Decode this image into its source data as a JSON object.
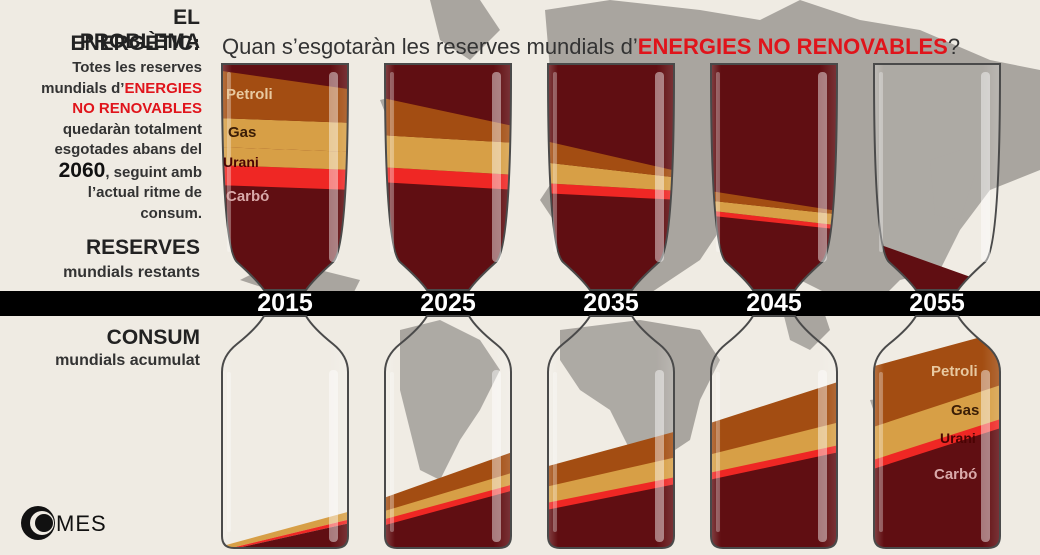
{
  "colors": {
    "petroli": "#9e4405",
    "gas": "#d59a3c",
    "urani": "#ee1c18",
    "carbo": "#580105",
    "background": "#efebe3",
    "map": "#a9a59f",
    "band": "#000000",
    "accent_red": "#e0141b"
  },
  "header": {
    "title_line1": "EL PROBLEMA",
    "title_line2": "ENERGÈTIC:",
    "question_prefix": "Quan s’esgotaràn les reserves mundials d’",
    "question_highlight": "ENERGIES NO RENOVABLES",
    "question_suffix": "?"
  },
  "sidebar": {
    "desc_line1": "Totes les reserves",
    "desc_line2_prefix": "mundials d’",
    "desc_line2_highlight": "ENERGIES",
    "desc_line3_highlight": "NO RENOVABLES",
    "desc_line4": "quedaràn totalment",
    "desc_line5": "esgotades abans del",
    "desc_year": "2060",
    "desc_line6_suffix": ", seguint amb",
    "desc_line7": "l’actual ritme de",
    "desc_line8": "consum.",
    "reserves_title": "RESERVES",
    "reserves_subtitle": "mundials restants",
    "consum_title": "CONSUM",
    "consum_subtitle": "mundials acumulat"
  },
  "labels": {
    "petroli": "Petroli",
    "gas": "Gas",
    "urani": "Urani",
    "carbo": "Carbó"
  },
  "years": [
    "2015",
    "2025",
    "2035",
    "2045",
    "2055"
  ],
  "logo": {
    "text": "MES"
  }
}
